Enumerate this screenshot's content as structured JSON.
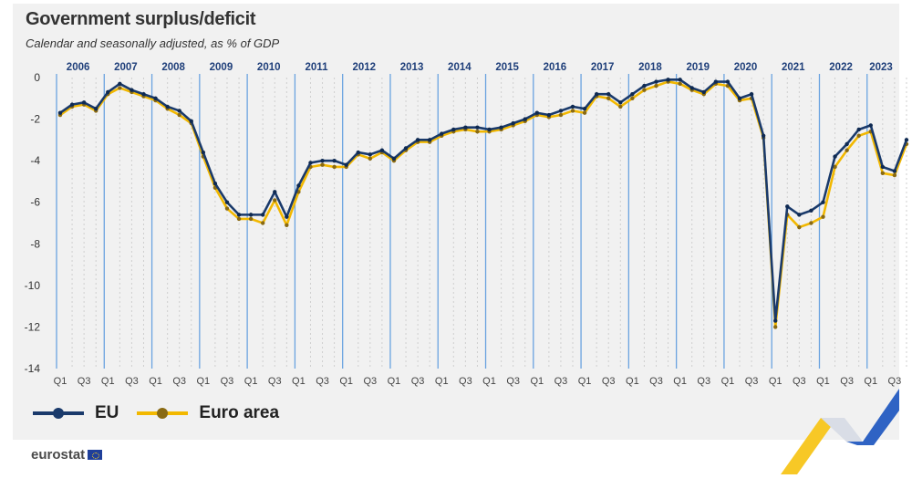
{
  "chart_data": {
    "type": "line",
    "title": "Government surplus/deficit",
    "subtitle": "Calendar and seasonally adjusted, as % of GDP",
    "ylim": [
      -14,
      0
    ],
    "y_ticks": [
      "0",
      "-2",
      "-4",
      "-6",
      "-8",
      "-10",
      "-12",
      "-14"
    ],
    "years": [
      "2006",
      "2007",
      "2008",
      "2009",
      "2010",
      "2011",
      "2012",
      "2013",
      "2014",
      "2015",
      "2016",
      "2017",
      "2018",
      "2019",
      "2020",
      "2021",
      "2022",
      "2023"
    ],
    "quarter_labels": [
      "Q1",
      "Q3"
    ],
    "legend": "bottom-left",
    "series": [
      {
        "name": "EU",
        "color": "#1a3a6b",
        "values": [
          -1.7,
          -1.3,
          -1.2,
          -1.5,
          -0.7,
          -0.3,
          -0.6,
          -0.8,
          -1.0,
          -1.4,
          -1.6,
          -2.1,
          -3.6,
          -5.1,
          -6.0,
          -6.6,
          -6.6,
          -6.6,
          -5.5,
          -6.7,
          -5.2,
          -4.1,
          -4.0,
          -4.0,
          -4.2,
          -3.6,
          -3.7,
          -3.5,
          -3.9,
          -3.4,
          -3.0,
          -3.0,
          -2.7,
          -2.5,
          -2.4,
          -2.4,
          -2.5,
          -2.4,
          -2.2,
          -2.0,
          -1.7,
          -1.8,
          -1.6,
          -1.4,
          -1.5,
          -0.8,
          -0.8,
          -1.2,
          -0.8,
          -0.4,
          -0.2,
          -0.1,
          -0.1,
          -0.5,
          -0.7,
          -0.2,
          -0.2,
          -1.0,
          -0.8,
          -2.8,
          -11.7,
          -6.2,
          -6.6,
          -6.4,
          -6.0,
          -3.8,
          -3.2,
          -2.5,
          -2.3,
          -4.3,
          -4.5,
          -3.0
        ]
      },
      {
        "name": "Euro area",
        "color": "#f2b800",
        "values": [
          -1.8,
          -1.4,
          -1.3,
          -1.6,
          -0.8,
          -0.5,
          -0.7,
          -0.9,
          -1.1,
          -1.5,
          -1.8,
          -2.2,
          -3.8,
          -5.3,
          -6.3,
          -6.8,
          -6.8,
          -7.0,
          -5.9,
          -7.1,
          -5.5,
          -4.3,
          -4.2,
          -4.3,
          -4.3,
          -3.7,
          -3.9,
          -3.6,
          -4.0,
          -3.5,
          -3.1,
          -3.1,
          -2.8,
          -2.6,
          -2.5,
          -2.6,
          -2.6,
          -2.5,
          -2.3,
          -2.1,
          -1.8,
          -1.9,
          -1.8,
          -1.6,
          -1.7,
          -0.9,
          -1.0,
          -1.4,
          -1.0,
          -0.6,
          -0.4,
          -0.2,
          -0.3,
          -0.6,
          -0.8,
          -0.3,
          -0.4,
          -1.1,
          -1.0,
          -2.9,
          -12.0,
          -6.6,
          -7.2,
          -7.0,
          -6.7,
          -4.3,
          -3.5,
          -2.8,
          -2.6,
          -4.6,
          -4.7,
          -3.2
        ]
      }
    ]
  },
  "legend_items": [
    {
      "label": "EU"
    },
    {
      "label": "Euro area"
    }
  ],
  "footer": {
    "logo_text": "eurostat"
  },
  "colors": {
    "eu": "#1a3a6b",
    "euro_area": "#f2b800",
    "year_line": "#6aa3e0",
    "grid": "#cfcfcf"
  }
}
